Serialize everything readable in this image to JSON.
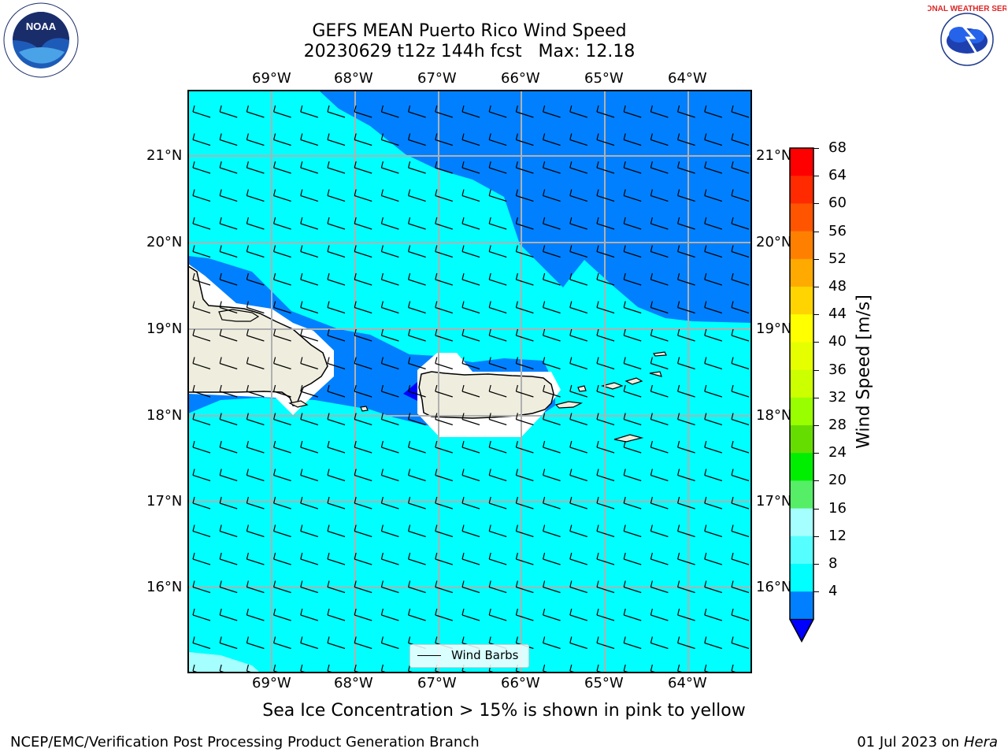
{
  "title": {
    "line1": "GEFS MEAN Puerto Rico Wind Speed",
    "line2": "20230629 t12z 144h fcst   Max: 12.18"
  },
  "axes": {
    "lon_labels": [
      "69°W",
      "68°W",
      "67°W",
      "66°W",
      "65°W",
      "64°W"
    ],
    "lat_labels": [
      "21°N",
      "20°N",
      "19°N",
      "18°N",
      "17°N",
      "16°N"
    ]
  },
  "colorbar": {
    "label": "Wind Speed [m/s]",
    "ticks": [
      "68",
      "64",
      "60",
      "56",
      "52",
      "48",
      "44",
      "40",
      "36",
      "32",
      "28",
      "24",
      "20",
      "16",
      "12",
      "8",
      "4"
    ],
    "colors": [
      "#ff0000",
      "#ff2a00",
      "#ff5500",
      "#ff8000",
      "#ffaa00",
      "#ffd400",
      "#ffff00",
      "#e6ff00",
      "#ccff00",
      "#99ff00",
      "#66dd00",
      "#00ee00",
      "#55ee66",
      "#a5ffff",
      "#55ffff",
      "#00ffff",
      "#0080ff"
    ],
    "extend_color": "#0000ff"
  },
  "legend": {
    "label": "Wind Barbs"
  },
  "note": "Sea Ice Concentration > 15% is shown in pink to yellow",
  "footer": {
    "left": "NCEP/EMC/Verification Post Processing Product Generation Branch",
    "right_date": "01 Jul 2023 on ",
    "right_host": "Hera"
  },
  "logos": {
    "left": "NOAA",
    "right": "NATIONAL WEATHER SERVICE"
  },
  "map_colors": {
    "ocean_light": "#00ffff",
    "ocean_dark": "#0080ff",
    "land": "#efedde"
  }
}
